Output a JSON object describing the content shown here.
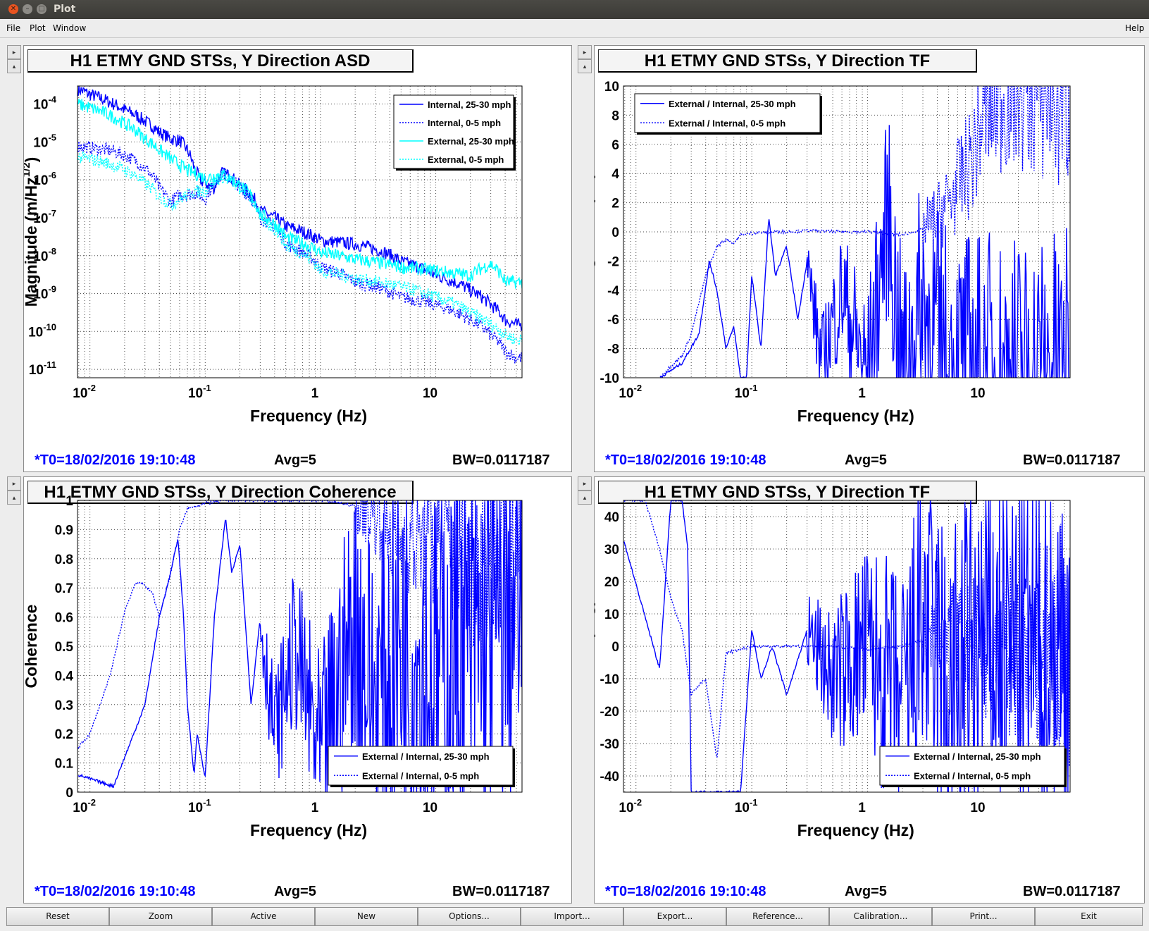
{
  "window": {
    "title": "Plot"
  },
  "menu": {
    "file": "File",
    "plot": "Plot",
    "window": "Window",
    "help": "Help"
  },
  "colors": {
    "series_dark": "#0000ff",
    "series_cyan": "#00ffff"
  },
  "panels": [
    {
      "title": "H1 ETMY GND STSs, Y Direction ASD",
      "status": {
        "t0": "*T0=18/02/2016 19:10:48",
        "avg": "Avg=5",
        "bw": "BW=0.0117187"
      },
      "chart_data": {
        "type": "line",
        "title": "H1 ETMY GND STSs, Y Direction ASD",
        "xlabel": "Frequency (Hz)",
        "ylabel_parts": [
          "Magnitude (m/Hz",
          "1/2",
          ")"
        ],
        "xscale": "log",
        "yscale": "log",
        "xlim": [
          0.0078,
          56
        ],
        "ylim": [
          6e-12,
          0.0003
        ],
        "grid": true,
        "legend_position": "top-right",
        "x_ticks": [
          {
            "base": "10",
            "exp": "-2"
          },
          {
            "base": "10",
            "exp": "-1"
          },
          {
            "base": "1",
            "exp": ""
          },
          {
            "base": "10",
            "exp": ""
          }
        ],
        "y_ticks": [
          {
            "base": "10",
            "exp": "-4"
          },
          {
            "base": "10",
            "exp": "-5"
          },
          {
            "base": "10",
            "exp": "-6"
          },
          {
            "base": "10",
            "exp": "-7"
          },
          {
            "base": "10",
            "exp": "-8"
          },
          {
            "base": "10",
            "exp": "-9"
          },
          {
            "base": "10",
            "exp": "-10"
          },
          {
            "base": "10",
            "exp": "-11"
          }
        ],
        "series": [
          {
            "name": "Internal, 25-30 mph",
            "style": "solid",
            "color": "#0000ff",
            "x": [
              0.0078,
              0.01,
              0.015,
              0.02,
              0.03,
              0.04,
              0.05,
              0.06,
              0.07,
              0.08,
              0.09,
              0.1,
              0.12,
              0.14,
              0.16,
              0.2,
              0.3,
              0.5,
              1,
              2,
              3,
              5,
              10,
              20,
              30,
              40,
              50
            ],
            "y": [
              0.00025,
              0.00018,
              0.00011,
              7e-05,
              3.5e-05,
              1.8e-05,
              1.2e-05,
              1.1e-05,
              6e-06,
              2e-06,
              1e-06,
              8e-07,
              6e-07,
              1.5e-06,
              1.3e-06,
              7e-07,
              1.5e-07,
              6e-08,
              2.5e-08,
              2e-08,
              1.5e-08,
              7e-09,
              3e-09,
              1.2e-09,
              5e-10,
              2e-10,
              1.5e-10
            ]
          },
          {
            "name": "Internal, 0-5 mph",
            "style": "dotted",
            "color": "#0000ff",
            "x": [
              0.0078,
              0.01,
              0.015,
              0.02,
              0.03,
              0.04,
              0.05,
              0.06,
              0.07,
              0.08,
              0.09,
              0.1,
              0.12,
              0.14,
              0.16,
              0.2,
              0.3,
              0.5,
              1,
              2,
              3,
              5,
              10,
              20,
              30,
              40,
              50
            ],
            "y": [
              8e-06,
              7e-06,
              6e-06,
              4.5e-06,
              2e-06,
              6e-07,
              2.5e-07,
              4e-07,
              4e-07,
              4.5e-07,
              4e-07,
              3e-07,
              8e-07,
              1.5e-06,
              1.3e-06,
              6e-07,
              1e-07,
              2e-08,
              5e-09,
              2e-09,
              1.5e-09,
              8e-10,
              5e-10,
              2e-10,
              8e-11,
              3e-11,
              2e-11
            ]
          },
          {
            "name": "External, 25-30 mph",
            "style": "solid",
            "color": "#00ffff",
            "x": [
              0.0078,
              0.01,
              0.015,
              0.02,
              0.03,
              0.04,
              0.05,
              0.06,
              0.07,
              0.08,
              0.1,
              0.14,
              0.2,
              0.3,
              0.5,
              1,
              2,
              5,
              10,
              20,
              30,
              40,
              50
            ],
            "y": [
              0.0001,
              8e-05,
              5e-05,
              3e-05,
              1.2e-05,
              6e-06,
              3.5e-06,
              2.5e-06,
              1.8e-06,
              1.5e-06,
              1.1e-06,
              1.4e-06,
              7e-07,
              1.2e-07,
              3e-08,
              1.2e-08,
              8e-09,
              5e-09,
              4e-09,
              3e-09,
              6e-09,
              2e-09,
              2e-09
            ]
          },
          {
            "name": "External, 0-5 mph",
            "style": "dotted",
            "color": "#00ffff",
            "x": [
              0.0078,
              0.01,
              0.015,
              0.02,
              0.03,
              0.04,
              0.05,
              0.06,
              0.08,
              0.1,
              0.14,
              0.2,
              0.3,
              0.5,
              1,
              2,
              5,
              10,
              20,
              30,
              40,
              50
            ],
            "y": [
              4e-06,
              3.5e-06,
              2.6e-06,
              1.8e-06,
              8e-07,
              3.5e-07,
              2.2e-07,
              3e-07,
              5e-07,
              5e-07,
              1.2e-06,
              6e-07,
              9e-08,
              1.8e-08,
              4e-09,
              2.5e-09,
              1.5e-09,
              8e-10,
              3e-10,
              1.5e-10,
              8e-11,
              6e-11
            ]
          }
        ]
      }
    },
    {
      "title": "H1 ETMY GND STSs, Y Direction TF",
      "status": {
        "t0": "*T0=18/02/2016 19:10:48",
        "avg": "Avg=5",
        "bw": "BW=0.0117187"
      },
      "chart_data": {
        "type": "line",
        "title": "H1 ETMY GND STSs, Y Direction TF",
        "xlabel": "Frequency (Hz)",
        "ylabel": "Magnitude (dB)",
        "xscale": "log",
        "yscale": "linear",
        "xlim": [
          0.0078,
          56
        ],
        "ylim": [
          -10,
          10
        ],
        "grid": true,
        "legend_position": "top-left",
        "x_ticks": [
          {
            "base": "10",
            "exp": "-2"
          },
          {
            "base": "10",
            "exp": "-1"
          },
          {
            "base": "1",
            "exp": ""
          },
          {
            "base": "10",
            "exp": ""
          }
        ],
        "y_ticks": [
          10,
          8,
          6,
          4,
          2,
          0,
          -2,
          -4,
          -6,
          -8,
          -10
        ],
        "series": [
          {
            "name": "External / Internal, 25-30 mph",
            "style": "solid",
            "color": "#0000ff",
            "x": [
              0.016,
              0.025,
              0.035,
              0.043,
              0.05,
              0.06,
              0.07,
              0.08,
              0.09,
              0.1,
              0.12,
              0.14,
              0.16,
              0.2,
              0.25,
              0.3,
              0.4,
              0.6,
              1,
              1.5,
              2,
              3,
              5,
              10,
              20,
              50
            ],
            "y": [
              -10,
              -9,
              -7,
              -2,
              -4,
              -8,
              -6.5,
              -10,
              -10,
              -3,
              -8,
              1,
              -3,
              -1,
              -6,
              -2,
              -9,
              -4,
              -10,
              1.5,
              -10,
              -5,
              -10,
              -10,
              -10,
              -10
            ],
            "noise_from": 0.3,
            "noise_amp": 8
          },
          {
            "name": "External / Internal, 0-5 mph",
            "style": "dotted",
            "color": "#0000ff",
            "x": [
              0.016,
              0.02,
              0.025,
              0.03,
              0.04,
              0.05,
              0.06,
              0.07,
              0.08,
              0.1,
              0.15,
              0.2,
              0.3,
              0.5,
              1,
              2,
              3,
              4,
              5,
              8,
              10,
              20,
              50
            ],
            "y": [
              -10,
              -9.2,
              -8.5,
              -7,
              -3,
              -1,
              -0.5,
              -0.8,
              -0.2,
              -0.1,
              0,
              0,
              0.1,
              0,
              0,
              -0.2,
              0.2,
              1,
              2,
              5,
              8,
              10,
              10
            ],
            "noise_from": 3,
            "noise_amp": 6
          }
        ]
      }
    },
    {
      "title": "H1 ETMY GND STSs, Y Direction Coherence",
      "status": {
        "t0": "*T0=18/02/2016 19:10:48",
        "avg": "Avg=5",
        "bw": "BW=0.0117187"
      },
      "chart_data": {
        "type": "line",
        "title": "H1 ETMY GND STSs, Y Direction Coherence",
        "xlabel": "Frequency (Hz)",
        "ylabel": "Coherence",
        "xscale": "log",
        "yscale": "linear",
        "xlim": [
          0.0078,
          56
        ],
        "ylim": [
          0,
          1
        ],
        "grid": true,
        "legend_position": "bottom-right",
        "x_ticks": [
          {
            "base": "10",
            "exp": "-2"
          },
          {
            "base": "10",
            "exp": "-1"
          },
          {
            "base": "1",
            "exp": ""
          },
          {
            "base": "10",
            "exp": ""
          }
        ],
        "y_ticks": [
          1,
          0.9,
          0.8,
          0.7,
          0.6,
          0.5,
          0.4,
          0.3,
          0.2,
          0.1,
          0
        ],
        "series": [
          {
            "name": "External / Internal, 25-30 mph",
            "style": "solid",
            "color": "#0000ff",
            "x": [
              0.0078,
              0.016,
              0.024,
              0.03,
              0.04,
              0.05,
              0.058,
              0.065,
              0.07,
              0.08,
              0.085,
              0.1,
              0.12,
              0.15,
              0.17,
              0.2,
              0.25,
              0.3,
              0.4,
              0.6,
              1,
              2,
              3,
              5,
              10,
              20,
              50
            ],
            "y": [
              0.06,
              0.02,
              0.2,
              0.3,
              0.6,
              0.75,
              0.87,
              0.6,
              0.3,
              0.06,
              0.2,
              0.05,
              0.6,
              0.94,
              0.75,
              0.85,
              0.3,
              0.6,
              0.2,
              0.5,
              0.1,
              0.6,
              0.3,
              0.5,
              0.4,
              0.5,
              0.6
            ],
            "noise_from": 0.3,
            "noise_amp": 0.5
          },
          {
            "name": "External / Internal, 0-5 mph",
            "style": "dotted",
            "color": "#0000ff",
            "x": [
              0.0078,
              0.01,
              0.015,
              0.02,
              0.025,
              0.03,
              0.035,
              0.04,
              0.05,
              0.06,
              0.07,
              0.08,
              0.1,
              0.15,
              0.2,
              0.3,
              0.5,
              1,
              1.5,
              2,
              3,
              5,
              10,
              20,
              50
            ],
            "y": [
              0.15,
              0.2,
              0.4,
              0.62,
              0.72,
              0.71,
              0.68,
              0.6,
              0.75,
              0.9,
              0.97,
              0.98,
              0.99,
              1,
              1,
              1,
              1,
              1,
              0.99,
              0.98,
              0.95,
              0.85,
              0.85,
              0.8,
              0.9
            ],
            "noise_from": 2,
            "noise_amp": 0.3
          }
        ]
      }
    },
    {
      "title": "H1 ETMY GND STSs, Y Direction TF",
      "status": {
        "t0": "*T0=18/02/2016 19:10:48",
        "avg": "Avg=5",
        "bw": "BW=0.0117187"
      },
      "chart_data": {
        "type": "line",
        "title": "H1 ETMY GND STSs, Y Direction TF",
        "xlabel": "Frequency (Hz)",
        "ylabel": "Phase (deg)",
        "xscale": "log",
        "yscale": "linear",
        "xlim": [
          0.0078,
          56
        ],
        "ylim": [
          -45,
          45
        ],
        "grid": true,
        "legend_position": "bottom-right",
        "x_ticks": [
          {
            "base": "10",
            "exp": "-2"
          },
          {
            "base": "10",
            "exp": "-1"
          },
          {
            "base": "1",
            "exp": ""
          },
          {
            "base": "10",
            "exp": ""
          }
        ],
        "y_ticks": [
          40,
          30,
          20,
          10,
          0,
          -10,
          -20,
          -30,
          -40
        ],
        "series": [
          {
            "name": "External / Internal, 25-30 mph",
            "style": "solid",
            "color": "#0000ff",
            "x": [
              0.0078,
              0.016,
              0.02,
              0.025,
              0.028,
              0.03,
              0.032,
              0.04,
              0.06,
              0.08,
              0.1,
              0.12,
              0.15,
              0.2,
              0.3,
              0.5,
              1,
              2,
              3,
              5,
              10,
              20,
              50
            ],
            "y": [
              33,
              -7,
              45,
              45,
              30,
              -45,
              -45,
              -45,
              -45,
              -45,
              5,
              -10,
              0,
              -15,
              5,
              -10,
              0,
              -20,
              10,
              -20,
              0,
              0,
              0
            ],
            "noise_from": 0.3,
            "noise_amp": 45
          },
          {
            "name": "External / Internal, 0-5 mph",
            "style": "dotted",
            "color": "#0000ff",
            "x": [
              0.0078,
              0.012,
              0.016,
              0.02,
              0.025,
              0.03,
              0.035,
              0.04,
              0.05,
              0.06,
              0.08,
              0.1,
              0.15,
              0.2,
              0.3,
              0.5,
              1,
              2,
              3,
              5,
              10,
              20,
              50
            ],
            "y": [
              45,
              45,
              30,
              15,
              5,
              -15,
              -12,
              -10,
              -35,
              -2,
              -1,
              0,
              0,
              0,
              0,
              0,
              -1,
              0,
              2,
              5,
              0,
              0,
              0
            ],
            "noise_from": 3,
            "noise_amp": 30
          }
        ]
      }
    }
  ],
  "buttons": [
    "Reset",
    "Zoom",
    "Active",
    "New",
    "Options...",
    "Import...",
    "Export...",
    "Reference...",
    "Calibration...",
    "Print...",
    "Exit"
  ]
}
